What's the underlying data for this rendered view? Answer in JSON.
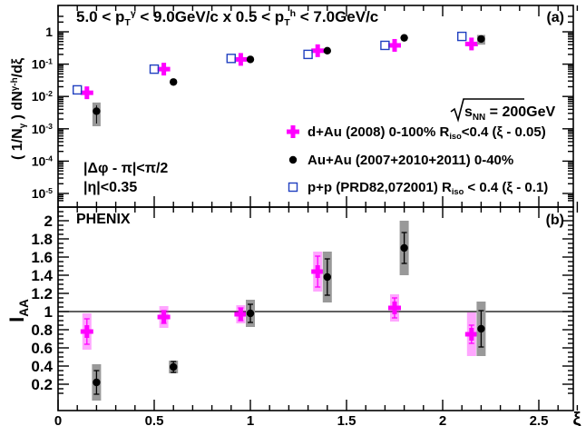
{
  "chart_data": [
    {
      "panel_label": "(a)",
      "type": "scatter",
      "title": "5.0 < p_T^γ < 9.0GeV/c x 0.5 < p_T^h < 7.0GeV/c",
      "ylabel": "( 1/N_γ ) dN^{γ-h}/dξ",
      "yscale": "log",
      "ylim": [
        5e-06,
        3
      ],
      "yticks": [
        "10^{-5}",
        "10^{-4}",
        "10^{-3}",
        "10^{-2}",
        "10^{-1}",
        "1"
      ],
      "annotations": [
        "√s_NN = 200GeV",
        "|Δφ - π|<π/2",
        "|η|<0.35"
      ],
      "legend_placement": "lower-right",
      "series": [
        {
          "name": "d+Au (2008) 0-100% R_iso<0.4 (ξ - 0.05)",
          "color": "#ff00ff",
          "marker": "plus",
          "x": [
            0.15,
            0.55,
            0.95,
            1.35,
            1.75,
            2.15
          ],
          "y": [
            0.013,
            0.07,
            0.14,
            0.26,
            0.38,
            0.42
          ]
        },
        {
          "name": "Au+Au (2007+2010+2011) 0-40%",
          "color": "#000000",
          "marker": "filled-circle",
          "x": [
            0.2,
            0.6,
            1.0,
            1.4,
            1.8,
            2.2
          ],
          "y": [
            0.0035,
            0.028,
            0.14,
            0.26,
            0.65,
            0.6
          ],
          "syst_low": [
            0.0012,
            null,
            null,
            null,
            null,
            0.4
          ],
          "syst_high": [
            0.0065,
            null,
            null,
            null,
            null,
            0.8
          ]
        },
        {
          "name": "p+p (PRD82,072001) R_iso < 0.4 (ξ - 0.1)",
          "color": "#2040c0",
          "marker": "open-square",
          "x": [
            0.1,
            0.5,
            0.9,
            1.3,
            1.7,
            2.1
          ],
          "y": [
            0.016,
            0.07,
            0.15,
            0.2,
            0.38,
            0.72
          ]
        }
      ]
    },
    {
      "panel_label": "(b)",
      "type": "scatter",
      "annotations": [
        "PHENIX"
      ],
      "xlabel": "ξ",
      "ylabel": "I_AA",
      "xlim": [
        0,
        2.8
      ],
      "ylim": [
        0,
        2.1
      ],
      "xticks": [
        "0",
        "0.5",
        "1",
        "1.5",
        "2",
        "2.5"
      ],
      "yticks": [
        "0.2",
        "0.4",
        "0.6",
        "0.8",
        "1",
        "1.2",
        "1.4",
        "1.6",
        "1.8",
        "2"
      ],
      "reference_line_y": 1,
      "series": [
        {
          "name": "d+Au",
          "color": "#ff00ff",
          "marker": "plus",
          "x": [
            0.15,
            0.55,
            0.95,
            1.35,
            1.75,
            2.15
          ],
          "y": [
            0.78,
            0.94,
            0.97,
            1.44,
            1.04,
            0.75
          ],
          "stat_err": [
            0.14,
            0.07,
            0.07,
            0.17,
            0.11,
            0.1
          ],
          "syst": [
            0.2,
            0.12,
            0.1,
            0.22,
            0.15,
            0.24
          ]
        },
        {
          "name": "Au+Au",
          "color": "#000000",
          "marker": "filled-circle",
          "x": [
            0.2,
            0.6,
            1.0,
            1.4,
            1.8,
            2.2
          ],
          "y": [
            0.22,
            0.39,
            0.98,
            1.38,
            1.7,
            0.81
          ],
          "stat_err": [
            0.13,
            0.06,
            0.1,
            0.2,
            0.17,
            0.2
          ],
          "syst": [
            0.2,
            0.07,
            0.15,
            0.28,
            0.3,
            0.3
          ]
        }
      ]
    }
  ]
}
